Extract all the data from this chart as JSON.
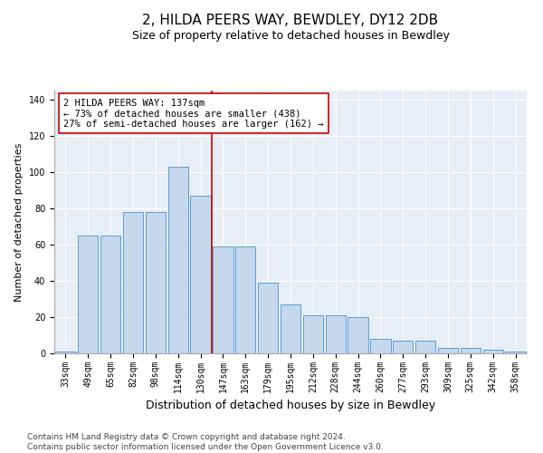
{
  "title": "2, HILDA PEERS WAY, BEWDLEY, DY12 2DB",
  "subtitle": "Size of property relative to detached houses in Bewdley",
  "xlabel": "Distribution of detached houses by size in Bewdley",
  "ylabel": "Number of detached properties",
  "categories": [
    "33sqm",
    "49sqm",
    "65sqm",
    "82sqm",
    "98sqm",
    "114sqm",
    "130sqm",
    "147sqm",
    "163sqm",
    "179sqm",
    "195sqm",
    "212sqm",
    "228sqm",
    "244sqm",
    "260sqm",
    "277sqm",
    "293sqm",
    "309sqm",
    "325sqm",
    "342sqm",
    "358sqm"
  ],
  "values": [
    1,
    65,
    65,
    78,
    78,
    103,
    87,
    59,
    59,
    39,
    27,
    21,
    21,
    20,
    8,
    7,
    7,
    3,
    3,
    2,
    1
  ],
  "bar_color": "#c5d8ec",
  "bar_edge_color": "#5a9fd4",
  "vline_color": "#cc0000",
  "annotation_text": "2 HILDA PEERS WAY: 137sqm\n← 73% of detached houses are smaller (438)\n27% of semi-detached houses are larger (162) →",
  "annotation_box_color": "#ffffff",
  "annotation_box_edge_color": "#cc0000",
  "ylim": [
    0,
    145
  ],
  "yticks": [
    0,
    20,
    40,
    60,
    80,
    100,
    120,
    140
  ],
  "background_color": "#e8eef6",
  "footer": "Contains HM Land Registry data © Crown copyright and database right 2024.\nContains public sector information licensed under the Open Government Licence v3.0.",
  "title_fontsize": 11,
  "subtitle_fontsize": 9,
  "xlabel_fontsize": 9,
  "ylabel_fontsize": 8,
  "tick_fontsize": 7,
  "annotation_fontsize": 7.5,
  "footer_fontsize": 6.5
}
